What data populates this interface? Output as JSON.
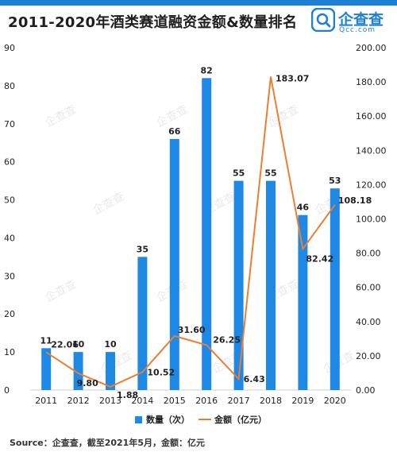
{
  "header": {
    "title": "2011-2020年酒类赛道融资金额&数量排名",
    "logo_text": "企查查",
    "logo_sub": "Qcc.com",
    "logo_icon": "qcc-magnifier-icon"
  },
  "footer": {
    "source": "Source：企查查，截至2021年5月，金额：亿元"
  },
  "colors": {
    "bar": "#1e88e5",
    "line": "#ee7d31",
    "brand": "#1e7fd6"
  },
  "chart_data": {
    "type": "bar",
    "categories": [
      "2011",
      "2012",
      "2013",
      "2014",
      "2015",
      "2016",
      "2017",
      "2018",
      "2019",
      "2020"
    ],
    "series": [
      {
        "name": "数量（次）",
        "type": "bar",
        "axis": "left",
        "values": [
          11,
          10,
          10,
          35,
          66,
          82,
          55,
          55,
          46,
          53
        ],
        "labels": [
          "11",
          "10",
          "10",
          "35",
          "66",
          "82",
          "55",
          "55",
          "46",
          "53"
        ]
      },
      {
        "name": "金额（亿元）",
        "type": "line",
        "axis": "right",
        "values": [
          22.06,
          9.8,
          1.88,
          10.52,
          31.6,
          26.25,
          6.43,
          183.07,
          82.42,
          108.18
        ],
        "labels": [
          "22.06",
          "9.80",
          "1.88",
          "10.52",
          "31.60",
          "26.25",
          "6.43",
          "183.07",
          "82.42",
          "108.18"
        ]
      }
    ],
    "y_left": {
      "ylim": [
        0,
        90
      ],
      "ticks": [
        "0",
        "10",
        "20",
        "30",
        "40",
        "50",
        "60",
        "70",
        "80",
        "90"
      ]
    },
    "y_right": {
      "ylim": [
        0,
        200
      ],
      "ticks": [
        "0.00",
        "20.00",
        "40.00",
        "60.00",
        "80.00",
        "100.00",
        "120.00",
        "140.00",
        "160.00",
        "180.00",
        "200.00"
      ]
    },
    "grid": false,
    "legend_position": "bottom",
    "watermark": "企查查"
  }
}
